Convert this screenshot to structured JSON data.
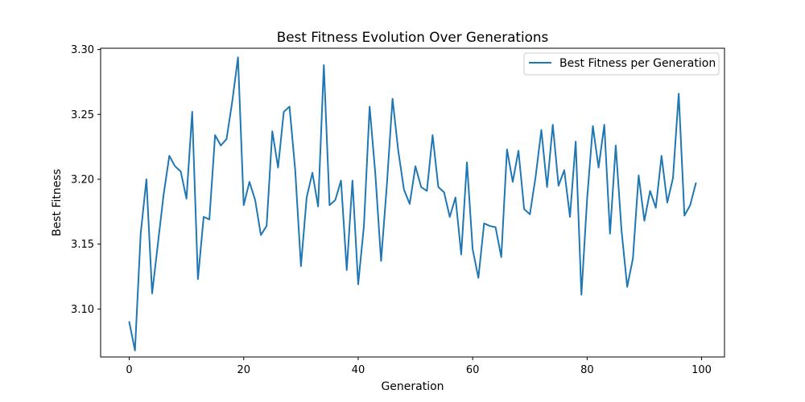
{
  "chart_data": {
    "type": "line",
    "title": "Best Fitness Evolution Over Generations",
    "xlabel": "Generation",
    "ylabel": "Best Fitness",
    "xlim": [
      -5,
      104
    ],
    "ylim": [
      3.063,
      3.301
    ],
    "xticks": [
      0,
      20,
      40,
      60,
      80,
      100
    ],
    "yticks": [
      3.1,
      3.15,
      3.2,
      3.25,
      3.3
    ],
    "xtick_labels": [
      "0",
      "20",
      "40",
      "60",
      "80",
      "100"
    ],
    "ytick_labels": [
      "3.10",
      "3.15",
      "3.20",
      "3.25",
      "3.30"
    ],
    "grid": false,
    "legend_position": "top-right",
    "series": [
      {
        "name": "Best Fitness per Generation",
        "color": "#1f77b4",
        "x": [
          0,
          1,
          2,
          3,
          4,
          5,
          6,
          7,
          8,
          9,
          10,
          11,
          12,
          13,
          14,
          15,
          16,
          17,
          18,
          19,
          20,
          21,
          22,
          23,
          24,
          25,
          26,
          27,
          28,
          29,
          30,
          31,
          32,
          33,
          34,
          35,
          36,
          37,
          38,
          39,
          40,
          41,
          42,
          43,
          44,
          45,
          46,
          47,
          48,
          49,
          50,
          51,
          52,
          53,
          54,
          55,
          56,
          57,
          58,
          59,
          60,
          61,
          62,
          63,
          64,
          65,
          66,
          67,
          68,
          69,
          70,
          71,
          72,
          73,
          74,
          75,
          76,
          77,
          78,
          79,
          80,
          81,
          82,
          83,
          84,
          85,
          86,
          87,
          88,
          89,
          90,
          91,
          92,
          93,
          94,
          95,
          96,
          97,
          98,
          99
        ],
        "values": [
          3.09,
          3.068,
          3.158,
          3.2,
          3.112,
          3.15,
          3.188,
          3.218,
          3.21,
          3.206,
          3.185,
          3.252,
          3.123,
          3.171,
          3.169,
          3.234,
          3.226,
          3.231,
          3.26,
          3.294,
          3.18,
          3.198,
          3.184,
          3.157,
          3.164,
          3.237,
          3.209,
          3.252,
          3.256,
          3.207,
          3.133,
          3.186,
          3.205,
          3.179,
          3.288,
          3.18,
          3.184,
          3.199,
          3.13,
          3.199,
          3.119,
          3.164,
          3.256,
          3.204,
          3.137,
          3.195,
          3.262,
          3.222,
          3.192,
          3.181,
          3.21,
          3.194,
          3.191,
          3.234,
          3.194,
          3.19,
          3.171,
          3.186,
          3.142,
          3.213,
          3.146,
          3.124,
          3.166,
          3.164,
          3.163,
          3.14,
          3.223,
          3.198,
          3.222,
          3.177,
          3.173,
          3.202,
          3.238,
          3.194,
          3.242,
          3.195,
          3.207,
          3.171,
          3.229,
          3.111,
          3.185,
          3.241,
          3.209,
          3.242,
          3.158,
          3.226,
          3.161,
          3.117,
          3.139,
          3.203,
          3.168,
          3.191,
          3.178,
          3.218,
          3.182,
          3.201,
          3.266,
          3.172,
          3.18,
          3.197
        ]
      }
    ]
  }
}
